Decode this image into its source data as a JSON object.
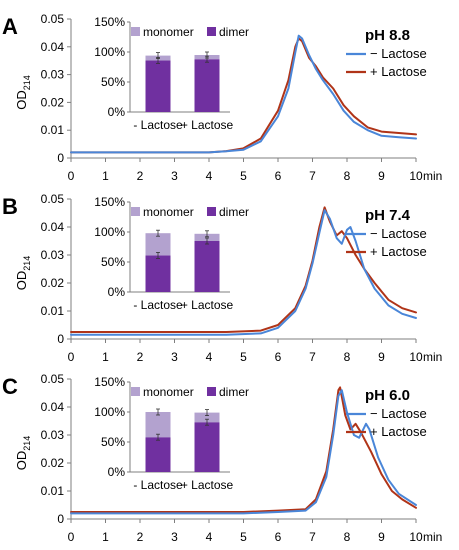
{
  "colors": {
    "minus_lactose": "#4a86d8",
    "plus_lactose": "#b03418",
    "monomer": "#b3a2cf",
    "dimer": "#7030a0",
    "axis": "#7f7f7f",
    "text": "#000000"
  },
  "chart_data": [
    {
      "panel": "A",
      "type": "line",
      "title": "pH 8.8",
      "xlabel": "",
      "x_unit": "min",
      "ylabel": "OD214",
      "ylabel_main": "OD",
      "ylabel_sub": "214",
      "xlim": [
        0,
        10
      ],
      "ylim": [
        0,
        0.05
      ],
      "x_ticks": [
        0,
        1,
        2,
        3,
        4,
        5,
        6,
        7,
        8,
        9,
        10
      ],
      "y_ticks": [
        "0",
        "0.01",
        "0.02",
        "0.03",
        "0.04",
        "0.05"
      ],
      "legend": "top-right",
      "series": [
        {
          "name": "− Lactose",
          "color_key": "minus_lactose",
          "points": [
            [
              0,
              0.002
            ],
            [
              4.0,
              0.002
            ],
            [
              4.5,
              0.0024
            ],
            [
              5.0,
              0.003
            ],
            [
              5.5,
              0.006
            ],
            [
              6.0,
              0.015
            ],
            [
              6.3,
              0.025
            ],
            [
              6.5,
              0.038
            ],
            [
              6.6,
              0.044
            ],
            [
              6.7,
              0.043
            ],
            [
              6.9,
              0.037
            ],
            [
              7.1,
              0.032
            ],
            [
              7.3,
              0.028
            ],
            [
              7.6,
              0.023
            ],
            [
              7.9,
              0.017
            ],
            [
              8.2,
              0.013
            ],
            [
              8.6,
              0.01
            ],
            [
              9.0,
              0.008
            ],
            [
              9.5,
              0.0075
            ],
            [
              10.0,
              0.007
            ]
          ]
        },
        {
          "name": "+ Lactose",
          "color_key": "plus_lactose",
          "points": [
            [
              0,
              0.002
            ],
            [
              4.0,
              0.002
            ],
            [
              4.5,
              0.0025
            ],
            [
              5.0,
              0.0035
            ],
            [
              5.5,
              0.007
            ],
            [
              6.0,
              0.017
            ],
            [
              6.3,
              0.028
            ],
            [
              6.5,
              0.04
            ],
            [
              6.6,
              0.043
            ],
            [
              6.7,
              0.042
            ],
            [
              6.9,
              0.036
            ],
            [
              7.1,
              0.033
            ],
            [
              7.3,
              0.029
            ],
            [
              7.6,
              0.025
            ],
            [
              7.9,
              0.019
            ],
            [
              8.2,
              0.015
            ],
            [
              8.6,
              0.011
            ],
            [
              9.0,
              0.0095
            ],
            [
              9.5,
              0.009
            ],
            [
              10.0,
              0.0085
            ]
          ]
        }
      ],
      "inset": {
        "type": "stacked_bar",
        "categories": [
          "- Lactose",
          "+ Lactose"
        ],
        "y_ticks": [
          "0%",
          "50%",
          "100%",
          "150%"
        ],
        "ylim": [
          0,
          150
        ],
        "legend": [
          "monomer",
          "dimer"
        ],
        "series": [
          {
            "name": "dimer",
            "color_key": "dimer",
            "values": [
              86,
              88
            ]
          },
          {
            "name": "monomer",
            "color_key": "monomer",
            "values": [
              8,
              7
            ]
          }
        ]
      }
    },
    {
      "panel": "B",
      "type": "line",
      "title": "pH 7.4",
      "xlabel": "",
      "x_unit": "min",
      "ylabel": "OD214",
      "ylabel_main": "OD",
      "ylabel_sub": "214",
      "xlim": [
        0,
        10
      ],
      "ylim": [
        0,
        0.05
      ],
      "x_ticks": [
        0,
        1,
        2,
        3,
        4,
        5,
        6,
        7,
        8,
        9,
        10
      ],
      "y_ticks": [
        "0",
        "0.01",
        "0.02",
        "0.03",
        "0.04",
        "0.05"
      ],
      "legend": "top-right",
      "series": [
        {
          "name": "− Lactose",
          "color_key": "minus_lactose",
          "points": [
            [
              0,
              0.0015
            ],
            [
              4.5,
              0.0015
            ],
            [
              5.5,
              0.002
            ],
            [
              6.0,
              0.004
            ],
            [
              6.5,
              0.01
            ],
            [
              6.8,
              0.018
            ],
            [
              7.0,
              0.027
            ],
            [
              7.2,
              0.038
            ],
            [
              7.35,
              0.046
            ],
            [
              7.5,
              0.043
            ],
            [
              7.7,
              0.036
            ],
            [
              7.85,
              0.034
            ],
            [
              8.0,
              0.039
            ],
            [
              8.1,
              0.04
            ],
            [
              8.25,
              0.035
            ],
            [
              8.5,
              0.025
            ],
            [
              8.8,
              0.018
            ],
            [
              9.2,
              0.012
            ],
            [
              9.6,
              0.009
            ],
            [
              10.0,
              0.0075
            ]
          ]
        },
        {
          "name": "+ Lactose",
          "color_key": "plus_lactose",
          "points": [
            [
              0,
              0.0025
            ],
            [
              4.5,
              0.0025
            ],
            [
              5.5,
              0.003
            ],
            [
              6.0,
              0.005
            ],
            [
              6.5,
              0.011
            ],
            [
              6.8,
              0.019
            ],
            [
              7.0,
              0.028
            ],
            [
              7.2,
              0.04
            ],
            [
              7.35,
              0.047
            ],
            [
              7.5,
              0.042
            ],
            [
              7.7,
              0.037
            ],
            [
              7.85,
              0.0385
            ],
            [
              8.0,
              0.036
            ],
            [
              8.25,
              0.03
            ],
            [
              8.5,
              0.025
            ],
            [
              8.8,
              0.02
            ],
            [
              9.2,
              0.014
            ],
            [
              9.6,
              0.011
            ],
            [
              10.0,
              0.0095
            ]
          ]
        }
      ],
      "inset": {
        "type": "stacked_bar",
        "categories": [
          "- Lactose",
          "+ Lactose"
        ],
        "y_ticks": [
          "0%",
          "50%",
          "100%",
          "150%"
        ],
        "ylim": [
          0,
          150
        ],
        "legend": [
          "monomer",
          "dimer"
        ],
        "series": [
          {
            "name": "dimer",
            "color_key": "dimer",
            "values": [
              61,
              85
            ]
          },
          {
            "name": "monomer",
            "color_key": "monomer",
            "values": [
              37,
              12
            ]
          }
        ]
      }
    },
    {
      "panel": "C",
      "type": "line",
      "title": "pH 6.0",
      "xlabel": "",
      "x_unit": "min",
      "ylabel": "OD214",
      "ylabel_main": "OD",
      "ylabel_sub": "214",
      "xlim": [
        0,
        10
      ],
      "ylim": [
        0,
        0.05
      ],
      "x_ticks": [
        0,
        1,
        2,
        3,
        4,
        5,
        6,
        7,
        8,
        9,
        10
      ],
      "y_ticks": [
        "0",
        "0.01",
        "0.02",
        "0.03",
        "0.04",
        "0.05"
      ],
      "legend": "top-right",
      "series": [
        {
          "name": "− Lactose",
          "color_key": "minus_lactose",
          "points": [
            [
              0,
              0.002
            ],
            [
              5.0,
              0.002
            ],
            [
              6.0,
              0.0025
            ],
            [
              6.8,
              0.003
            ],
            [
              7.1,
              0.006
            ],
            [
              7.4,
              0.015
            ],
            [
              7.6,
              0.03
            ],
            [
              7.75,
              0.044
            ],
            [
              7.85,
              0.046
            ],
            [
              8.0,
              0.038
            ],
            [
              8.2,
              0.03
            ],
            [
              8.35,
              0.029
            ],
            [
              8.55,
              0.034
            ],
            [
              8.65,
              0.032
            ],
            [
              8.9,
              0.022
            ],
            [
              9.2,
              0.014
            ],
            [
              9.5,
              0.009
            ],
            [
              10.0,
              0.005
            ]
          ]
        },
        {
          "name": "+ Lactose",
          "color_key": "plus_lactose",
          "points": [
            [
              0,
              0.0025
            ],
            [
              5.0,
              0.0025
            ],
            [
              6.0,
              0.003
            ],
            [
              6.8,
              0.0035
            ],
            [
              7.1,
              0.007
            ],
            [
              7.4,
              0.017
            ],
            [
              7.6,
              0.032
            ],
            [
              7.75,
              0.046
            ],
            [
              7.8,
              0.047
            ],
            [
              7.95,
              0.037
            ],
            [
              8.1,
              0.032
            ],
            [
              8.25,
              0.034
            ],
            [
              8.4,
              0.031
            ],
            [
              8.7,
              0.024
            ],
            [
              9.0,
              0.016
            ],
            [
              9.3,
              0.01
            ],
            [
              9.6,
              0.007
            ],
            [
              10.0,
              0.004
            ]
          ]
        }
      ],
      "inset": {
        "type": "stacked_bar",
        "categories": [
          "- Lactose",
          "+ Lactose"
        ],
        "y_ticks": [
          "0%",
          "50%",
          "100%",
          "150%"
        ],
        "ylim": [
          0,
          150
        ],
        "legend": [
          "monomer",
          "dimer"
        ],
        "series": [
          {
            "name": "dimer",
            "color_key": "dimer",
            "values": [
              58,
              83
            ]
          },
          {
            "name": "monomer",
            "color_key": "monomer",
            "values": [
              42,
              16
            ]
          }
        ]
      }
    }
  ]
}
